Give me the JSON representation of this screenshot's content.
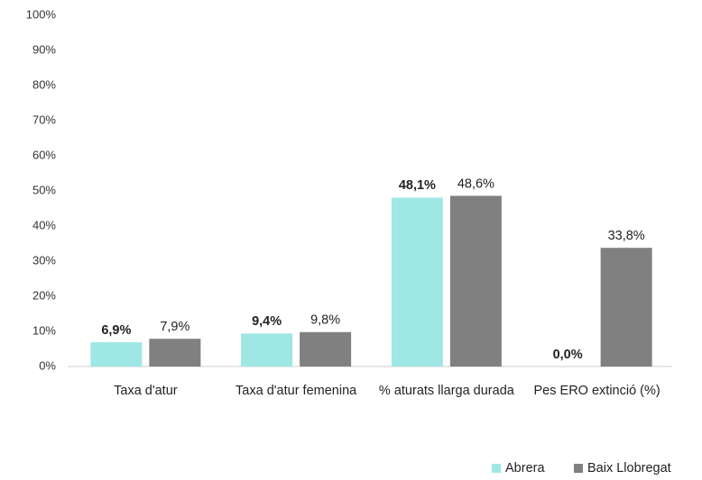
{
  "chart_data": {
    "type": "bar",
    "categories": [
      "Taxa d'atur",
      "Taxa d'atur femenina",
      "% aturats llarga durada",
      "Pes ERO extinció (%)"
    ],
    "series": [
      {
        "name": "Abrera",
        "color": "#9ee7e5",
        "values": [
          6.9,
          9.4,
          48.1,
          0.0
        ],
        "value_labels": [
          "6,9%",
          "9,4%",
          "48,1%",
          "0,0%"
        ]
      },
      {
        "name": "Baix Llobregat",
        "color": "#808080",
        "values": [
          7.9,
          9.8,
          48.6,
          33.8
        ],
        "value_labels": [
          "7,9%",
          "9,8%",
          "48,6%",
          "33,8%"
        ]
      }
    ],
    "ylim": [
      0,
      100
    ],
    "yticks": [
      {
        "value": 0,
        "label": "0%"
      },
      {
        "value": 10,
        "label": "10%"
      },
      {
        "value": 20,
        "label": "20%"
      },
      {
        "value": 30,
        "label": "30%"
      },
      {
        "value": 40,
        "label": "40%"
      },
      {
        "value": 50,
        "label": "50%"
      },
      {
        "value": 60,
        "label": "60%"
      },
      {
        "value": 70,
        "label": "70%"
      },
      {
        "value": 80,
        "label": "80%"
      },
      {
        "value": 90,
        "label": "90%"
      },
      {
        "value": 100,
        "label": "100%"
      }
    ],
    "grid": false,
    "legend": "bottom-right"
  }
}
